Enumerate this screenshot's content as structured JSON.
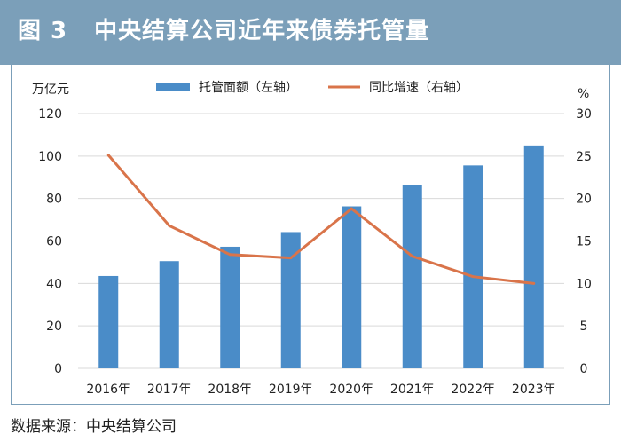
{
  "header": {
    "figure_label": "图 3",
    "title": "中央结算公司近年来债券托管量"
  },
  "source": "数据来源：中央结算公司",
  "colors": {
    "header_bg": "#7b9fb9",
    "bar": "#4a8cc8",
    "line": "#d9744a",
    "grid": "#d9d9d9"
  },
  "chart_data": {
    "type": "bar",
    "categories": [
      "2016年",
      "2017年",
      "2018年",
      "2019年",
      "2020年",
      "2021年",
      "2022年",
      "2023年"
    ],
    "series": [
      {
        "name": "托管面额（左轴）",
        "type": "bar",
        "axis": "left",
        "values": [
          43.5,
          50.5,
          57.3,
          64.2,
          76.3,
          86.3,
          95.6,
          105.0
        ]
      },
      {
        "name": "同比增速（右轴）",
        "type": "line",
        "axis": "right",
        "values": [
          25.1,
          16.8,
          13.4,
          13.0,
          18.8,
          13.2,
          10.8,
          10.0
        ]
      }
    ],
    "ylabel_left": "万亿元",
    "ylabel_right": "%",
    "ylim_left": [
      0,
      120
    ],
    "ylim_right": [
      0,
      30
    ],
    "yticks_left": [
      "0",
      "20",
      "40",
      "60",
      "80",
      "100",
      "120"
    ],
    "yticks_right": [
      "0",
      "5",
      "10",
      "15",
      "20",
      "25",
      "30"
    ],
    "grid": true,
    "legend_position": "top-center"
  }
}
